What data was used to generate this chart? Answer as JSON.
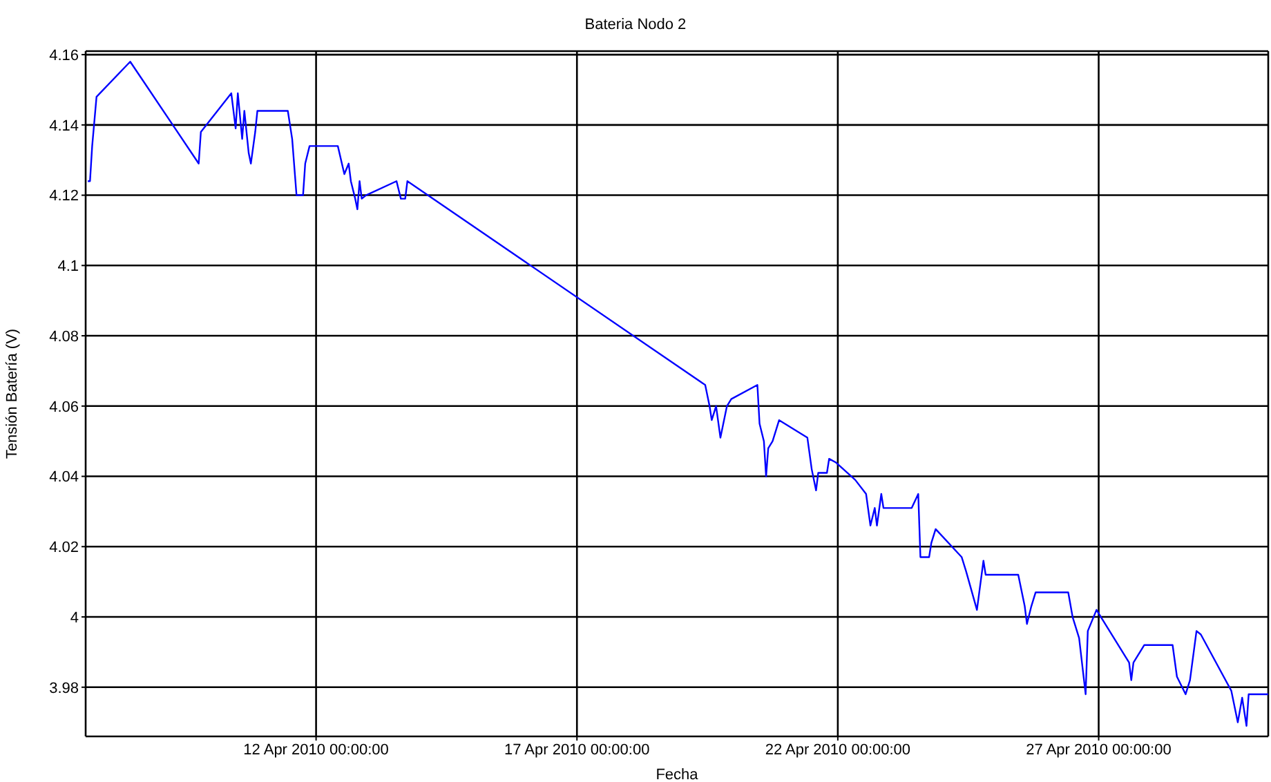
{
  "chart_data": {
    "type": "line",
    "title": "Bateria Nodo 2",
    "xlabel": "Fecha",
    "ylabel": "Tensión Batería (V)",
    "x": [
      "2010-04-07T15:00",
      "2010-04-07T16:00",
      "2010-04-07T17:00",
      "2010-04-07T19:00",
      "2010-04-08T10:30",
      "2010-04-09T18:00",
      "2010-04-09T19:00",
      "2010-04-10T09:00",
      "2010-04-10T11:00",
      "2010-04-10T12:00",
      "2010-04-10T14:00",
      "2010-04-10T15:00",
      "2010-04-10T17:00",
      "2010-04-10T18:00",
      "2010-04-10T20:00",
      "2010-04-10T21:00",
      "2010-04-11T11:00",
      "2010-04-11T13:00",
      "2010-04-11T15:00",
      "2010-04-11T18:00",
      "2010-04-11T19:00",
      "2010-04-11T21:00",
      "2010-04-12T10:00",
      "2010-04-12T13:00",
      "2010-04-12T15:00",
      "2010-04-12T16:00",
      "2010-04-12T18:00",
      "2010-04-12T19:00",
      "2010-04-12T20:00",
      "2010-04-12T21:00",
      "2010-04-12T23:00",
      "2010-04-13T13:00",
      "2010-04-13T15:00",
      "2010-04-13T17:00",
      "2010-04-13T18:00",
      "2010-04-19T11:00",
      "2010-04-19T13:00",
      "2010-04-19T14:00",
      "2010-04-19T16:00",
      "2010-04-19T18:00",
      "2010-04-19T21:00",
      "2010-04-19T23:00",
      "2010-04-20T11:00",
      "2010-04-20T12:00",
      "2010-04-20T14:00",
      "2010-04-20T15:00",
      "2010-04-20T16:00",
      "2010-04-20T18:00",
      "2010-04-20T21:00",
      "2010-04-21T10:00",
      "2010-04-21T12:00",
      "2010-04-21T14:00",
      "2010-04-21T15:00",
      "2010-04-21T19:00",
      "2010-04-21T20:00",
      "2010-04-21T23:00",
      "2010-04-22T08:00",
      "2010-04-22T13:00",
      "2010-04-22T15:00",
      "2010-04-22T17:00",
      "2010-04-22T18:00",
      "2010-04-22T20:00",
      "2010-04-22T21:00",
      "2010-04-23T10:00",
      "2010-04-23T13:00",
      "2010-04-23T14:00",
      "2010-04-23T18:00",
      "2010-04-23T19:00",
      "2010-04-23T21:00",
      "2010-04-24T09:00",
      "2010-04-24T11:00",
      "2010-04-24T16:00",
      "2010-04-24T19:00",
      "2010-04-24T20:00",
      "2010-04-24T21:00",
      "2010-04-25T11:00",
      "2010-04-25T14:00",
      "2010-04-25T15:00",
      "2010-04-25T17:00",
      "2010-04-25T19:00",
      "2010-04-26T10:00",
      "2010-04-26T12:00",
      "2010-04-26T15:00",
      "2010-04-26T18:00",
      "2010-04-26T19:00",
      "2010-04-26T23:00",
      "2010-04-27T14:00",
      "2010-04-27T15:00",
      "2010-04-27T16:00",
      "2010-04-27T21:00",
      "2010-04-28T10:00",
      "2010-04-28T12:00",
      "2010-04-28T16:00",
      "2010-04-28T18:00",
      "2010-04-28T21:00",
      "2010-04-28T23:00",
      "2010-04-29T13:00",
      "2010-04-29T16:00",
      "2010-04-29T18:00",
      "2010-04-29T20:00",
      "2010-04-29T21:00",
      "2010-04-30T06:00"
    ],
    "series": [
      {
        "color": "#0000ff",
        "values": [
          4.124,
          4.124,
          4.134,
          4.148,
          4.158,
          4.129,
          4.138,
          4.149,
          4.139,
          4.149,
          4.136,
          4.144,
          4.132,
          4.129,
          4.138,
          4.144,
          4.144,
          4.136,
          4.12,
          4.12,
          4.129,
          4.134,
          4.134,
          4.126,
          4.129,
          4.124,
          4.119,
          4.116,
          4.124,
          4.119,
          4.12,
          4.124,
          4.119,
          4.119,
          4.124,
          4.066,
          4.06,
          4.056,
          4.06,
          4.051,
          4.06,
          4.062,
          4.066,
          4.055,
          4.05,
          4.04,
          4.048,
          4.05,
          4.056,
          4.051,
          4.042,
          4.036,
          4.041,
          4.041,
          4.045,
          4.044,
          4.039,
          4.035,
          4.026,
          4.031,
          4.026,
          4.035,
          4.031,
          4.031,
          4.035,
          4.017,
          4.017,
          4.021,
          4.025,
          4.017,
          4.013,
          4.002,
          4.016,
          4.012,
          4.012,
          4.012,
          4.003,
          3.998,
          4.003,
          4.007,
          4.007,
          4.0,
          3.994,
          3.978,
          3.996,
          4.002,
          3.987,
          3.982,
          3.987,
          3.992,
          3.992,
          3.983,
          3.978,
          3.982,
          3.996,
          3.995,
          3.979,
          3.97,
          3.977,
          3.969,
          3.978,
          3.978
        ]
      }
    ],
    "xlim": [
      "2010-04-07T14:00",
      "2010-04-30T06:00"
    ],
    "xticks": [
      {
        "value": "2010-04-12T00:00",
        "label": "12 Apr 2010 00:00:00"
      },
      {
        "value": "2010-04-17T00:00",
        "label": "17 Apr 2010 00:00:00"
      },
      {
        "value": "2010-04-22T00:00",
        "label": "22 Apr 2010 00:00:00"
      },
      {
        "value": "2010-04-27T00:00",
        "label": "27 Apr 2010 00:00:00"
      }
    ],
    "ylim": [
      3.966,
      4.161
    ],
    "yticks": [
      3.98,
      4,
      4.02,
      4.04,
      4.06,
      4.08,
      4.1,
      4.12,
      4.14,
      4.16
    ],
    "grid": true,
    "legend": false
  }
}
